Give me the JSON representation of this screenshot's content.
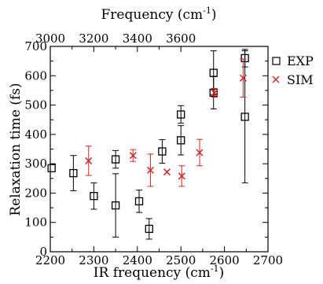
{
  "chart_data": {
    "type": "scatter",
    "xlabel": "IR frequency (cm",
    "xlabel_sup": "-1",
    "xlabel_tail": ")",
    "ylabel": "Relaxation time (fs)",
    "top_label": "Frequency (cm",
    "top_label_sup": "-1",
    "top_label_tail": ")",
    "xlim": [
      2200,
      2700
    ],
    "ylim": [
      0,
      700
    ],
    "x_ticks": [
      2200,
      2300,
      2400,
      2500,
      2600,
      2700
    ],
    "y_ticks": [
      0,
      100,
      200,
      300,
      400,
      500,
      600,
      700
    ],
    "top_ticks": [
      3000,
      3200,
      3400,
      3600
    ],
    "top_axis_mapping": "top frequency = 2 × IR frequency − 1400 (top 3000 at IR 2200, top 3600 at IR 2500)",
    "legend_position": "right",
    "series": [
      {
        "name": "EXP",
        "marker": "open-square",
        "color": "#000000",
        "points": [
          {
            "x": 2203,
            "y": 285,
            "err": 0
          },
          {
            "x": 2253,
            "y": 268,
            "err": 60
          },
          {
            "x": 2300,
            "y": 190,
            "err": 45
          },
          {
            "x": 2350,
            "y": 315,
            "err": 30
          },
          {
            "x": 2350,
            "y": 158,
            "err": 108
          },
          {
            "x": 2404,
            "y": 172,
            "err": 38
          },
          {
            "x": 2427,
            "y": 78,
            "err": 35
          },
          {
            "x": 2457,
            "y": 342,
            "err": 40
          },
          {
            "x": 2500,
            "y": 468,
            "err": 30
          },
          {
            "x": 2500,
            "y": 380,
            "err": 50
          },
          {
            "x": 2575,
            "y": 610,
            "err": 75
          },
          {
            "x": 2575,
            "y": 542,
            "err": 55
          },
          {
            "x": 2647,
            "y": 660,
            "err": 30
          },
          {
            "x": 2647,
            "y": 460,
            "err": 225
          }
        ]
      },
      {
        "name": "SIM",
        "marker": "x",
        "color": "#d62728",
        "points": [
          {
            "x": 2288,
            "y": 310,
            "err": 50
          },
          {
            "x": 2390,
            "y": 328,
            "err": 20
          },
          {
            "x": 2430,
            "y": 278,
            "err": 55
          },
          {
            "x": 2468,
            "y": 272,
            "err": 0
          },
          {
            "x": 2502,
            "y": 258,
            "err": 35
          },
          {
            "x": 2543,
            "y": 338,
            "err": 45
          },
          {
            "x": 2577,
            "y": 542,
            "err": 15
          },
          {
            "x": 2643,
            "y": 592,
            "err": 65
          }
        ]
      }
    ]
  }
}
